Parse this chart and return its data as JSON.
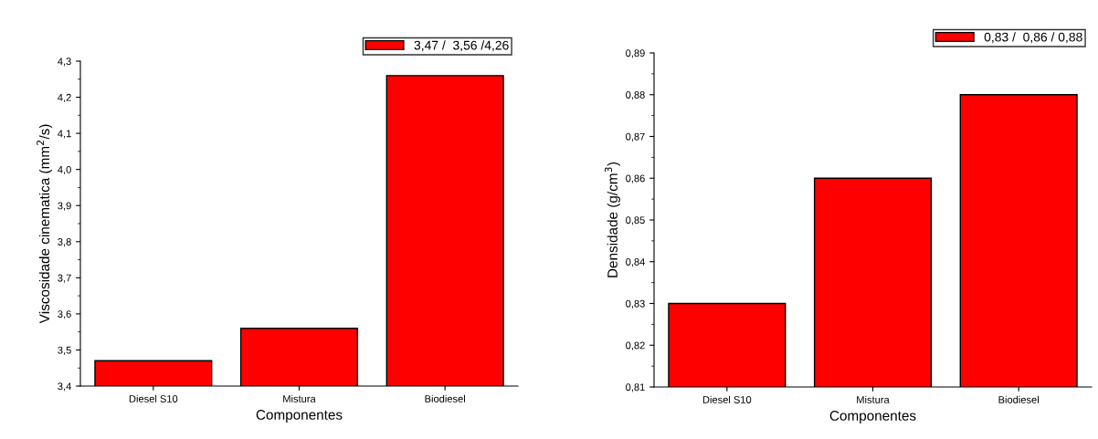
{
  "chart_data": [
    {
      "type": "bar",
      "xlabel": "Componentes",
      "ylabel": "Viscosidade cinematica (mm$^{2}$/s)",
      "categories": [
        "Diesel S10",
        "Mistura",
        "Biodiesel"
      ],
      "series": [
        {
          "name": "3,47 /  3,56 /4,26",
          "color": "#ff0000",
          "values": [
            3.47,
            3.56,
            4.26
          ]
        }
      ],
      "ylim": [
        3.4,
        4.3
      ],
      "yticks": [
        {
          "value": 3.4,
          "label": "3,4"
        },
        {
          "value": 3.5,
          "label": "3,5"
        },
        {
          "value": 3.6,
          "label": "3,6"
        },
        {
          "value": 3.7,
          "label": "3,7"
        },
        {
          "value": 3.8,
          "label": "3,8"
        },
        {
          "value": 3.9,
          "label": "3,9"
        },
        {
          "value": 4.0,
          "label": "4,0"
        },
        {
          "value": 4.1,
          "label": "4,1"
        },
        {
          "value": 4.2,
          "label": "4,2"
        },
        {
          "value": 4.3,
          "label": "4,3"
        }
      ],
      "legend": "top right",
      "grid": false
    },
    {
      "type": "bar",
      "xlabel": "Componentes",
      "ylabel": "Densidade (g/cm$^{3}$)",
      "categories": [
        "Diesel S10",
        "Mistura",
        "Biodiesel"
      ],
      "series": [
        {
          "name": "0,83 /  0,86 / 0,88",
          "color": "#ff0000",
          "values": [
            0.83,
            0.86,
            0.88
          ]
        }
      ],
      "ylim": [
        0.81,
        0.89
      ],
      "yticks": [
        {
          "value": 0.81,
          "label": "0,81"
        },
        {
          "value": 0.82,
          "label": "0,82"
        },
        {
          "value": 0.83,
          "label": "0,83"
        },
        {
          "value": 0.84,
          "label": "0,84"
        },
        {
          "value": 0.85,
          "label": "0,85"
        },
        {
          "value": 0.86,
          "label": "0,86"
        },
        {
          "value": 0.87,
          "label": "0,87"
        },
        {
          "value": 0.88,
          "label": "0,88"
        },
        {
          "value": 0.89,
          "label": "0,89"
        }
      ],
      "legend": "top right",
      "grid": false
    }
  ]
}
